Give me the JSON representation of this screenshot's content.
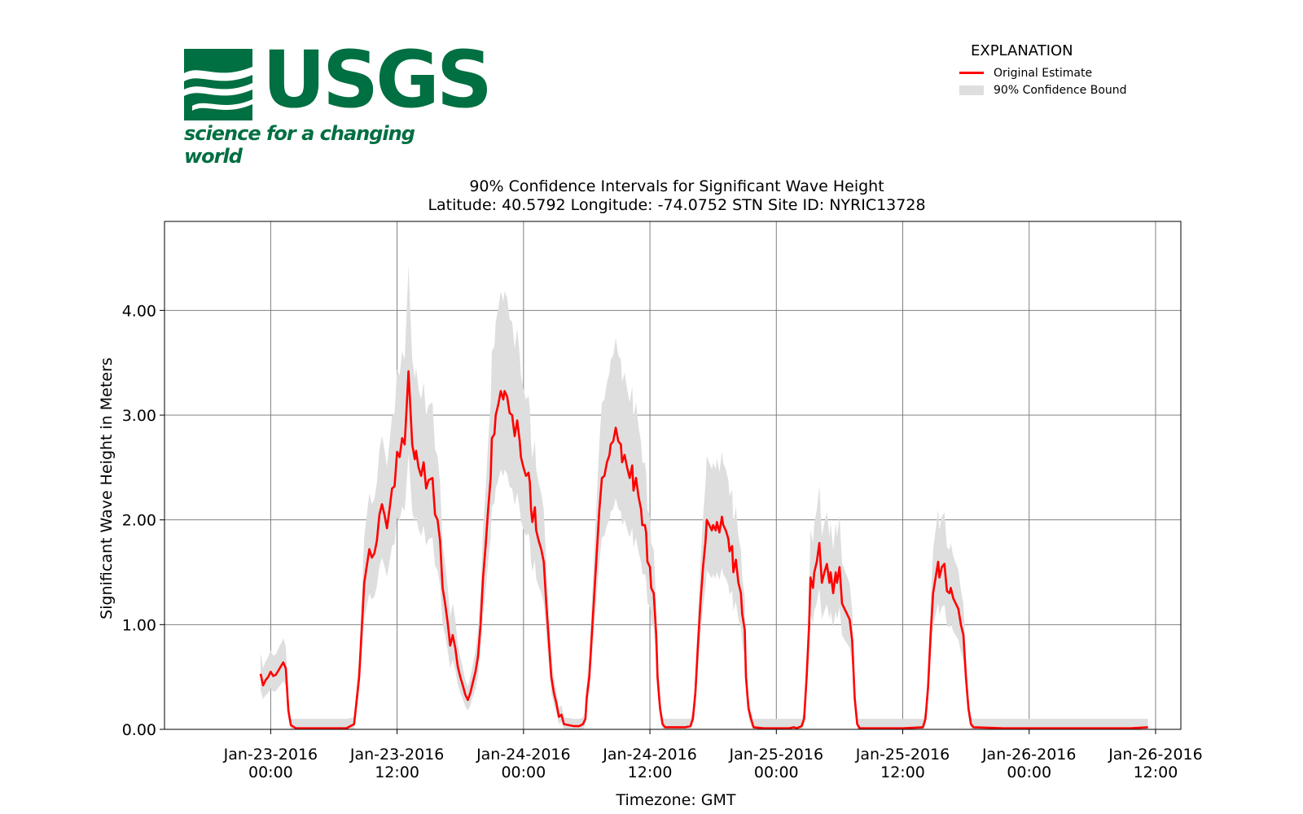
{
  "logo": {
    "wordmark": "USGS",
    "tagline": "science for a changing world"
  },
  "legend": {
    "title": "EXPLANATION",
    "items": [
      {
        "label": "Original Estimate",
        "kind": "line",
        "color": "#ff0000"
      },
      {
        "label": "90% Confidence Bound",
        "kind": "band",
        "color": "#dedede"
      }
    ]
  },
  "chart_data": {
    "type": "line",
    "title": "90% Confidence Intervals for Significant Wave Height",
    "subtitle": "Latitude: 40.5792 Longitude: -74.0752 STN Site ID: NYRIC13728",
    "xlabel": "Timezone: GMT",
    "ylabel": "Significant Wave Height in Meters",
    "xlim": [
      -0.42,
      3.6
    ],
    "ylim": [
      0,
      4.85
    ],
    "grid": true,
    "legend_position": "top-right",
    "x_ticks": [
      {
        "value": 0.0,
        "label_date": "Jan-23-2016",
        "label_time": "00:00"
      },
      {
        "value": 0.5,
        "label_date": "Jan-23-2016",
        "label_time": "12:00"
      },
      {
        "value": 1.0,
        "label_date": "Jan-24-2016",
        "label_time": "00:00"
      },
      {
        "value": 1.5,
        "label_date": "Jan-24-2016",
        "label_time": "12:00"
      },
      {
        "value": 2.0,
        "label_date": "Jan-25-2016",
        "label_time": "00:00"
      },
      {
        "value": 2.5,
        "label_date": "Jan-25-2016",
        "label_time": "12:00"
      },
      {
        "value": 3.0,
        "label_date": "Jan-26-2016",
        "label_time": "00:00"
      },
      {
        "value": 3.5,
        "label_date": "Jan-26-2016",
        "label_time": "12:00"
      }
    ],
    "y_ticks": [
      {
        "value": 0,
        "label": "0.00"
      },
      {
        "value": 1,
        "label": "1.00"
      },
      {
        "value": 2,
        "label": "2.00"
      },
      {
        "value": 3,
        "label": "3.00"
      },
      {
        "value": 4,
        "label": "4.00"
      }
    ],
    "x_unit_note": "x in days from Jan-23-2016 00:00 GMT",
    "series": [
      {
        "name": "Original Estimate",
        "color": "#ff0000",
        "points": [
          [
            -0.04,
            0.53
          ],
          [
            -0.03,
            0.42
          ],
          [
            -0.02,
            0.47
          ],
          [
            -0.01,
            0.5
          ],
          [
            0.0,
            0.55
          ],
          [
            0.01,
            0.51
          ],
          [
            0.02,
            0.52
          ],
          [
            0.03,
            0.56
          ],
          [
            0.04,
            0.6
          ],
          [
            0.05,
            0.64
          ],
          [
            0.06,
            0.58
          ],
          [
            0.07,
            0.18
          ],
          [
            0.08,
            0.04
          ],
          [
            0.1,
            0.01
          ],
          [
            0.3,
            0.01
          ],
          [
            0.33,
            0.05
          ],
          [
            0.35,
            0.5
          ],
          [
            0.37,
            1.4
          ],
          [
            0.39,
            1.72
          ],
          [
            0.4,
            1.64
          ],
          [
            0.41,
            1.68
          ],
          [
            0.42,
            1.8
          ],
          [
            0.43,
            2.05
          ],
          [
            0.44,
            2.15
          ],
          [
            0.45,
            2.05
          ],
          [
            0.46,
            1.92
          ],
          [
            0.47,
            2.1
          ],
          [
            0.48,
            2.3
          ],
          [
            0.49,
            2.32
          ],
          [
            0.5,
            2.65
          ],
          [
            0.51,
            2.6
          ],
          [
            0.52,
            2.78
          ],
          [
            0.53,
            2.72
          ],
          [
            0.535,
            2.95
          ],
          [
            0.545,
            3.42
          ],
          [
            0.555,
            2.95
          ],
          [
            0.56,
            2.72
          ],
          [
            0.57,
            2.58
          ],
          [
            0.575,
            2.66
          ],
          [
            0.585,
            2.5
          ],
          [
            0.595,
            2.42
          ],
          [
            0.605,
            2.55
          ],
          [
            0.615,
            2.3
          ],
          [
            0.625,
            2.38
          ],
          [
            0.64,
            2.4
          ],
          [
            0.65,
            2.05
          ],
          [
            0.66,
            2.0
          ],
          [
            0.67,
            1.8
          ],
          [
            0.68,
            1.35
          ],
          [
            0.69,
            1.2
          ],
          [
            0.7,
            1.02
          ],
          [
            0.71,
            0.8
          ],
          [
            0.72,
            0.9
          ],
          [
            0.73,
            0.78
          ],
          [
            0.74,
            0.6
          ],
          [
            0.75,
            0.5
          ],
          [
            0.76,
            0.42
          ],
          [
            0.77,
            0.33
          ],
          [
            0.78,
            0.28
          ],
          [
            0.79,
            0.35
          ],
          [
            0.8,
            0.45
          ],
          [
            0.81,
            0.55
          ],
          [
            0.82,
            0.7
          ],
          [
            0.83,
            1.0
          ],
          [
            0.84,
            1.45
          ],
          [
            0.85,
            1.75
          ],
          [
            0.86,
            2.1
          ],
          [
            0.87,
            2.4
          ],
          [
            0.875,
            2.78
          ],
          [
            0.885,
            2.82
          ],
          [
            0.89,
            3.0
          ],
          [
            0.9,
            3.1
          ],
          [
            0.91,
            3.23
          ],
          [
            0.92,
            3.15
          ],
          [
            0.925,
            3.23
          ],
          [
            0.935,
            3.18
          ],
          [
            0.945,
            3.02
          ],
          [
            0.955,
            3.0
          ],
          [
            0.96,
            2.9
          ],
          [
            0.965,
            2.8
          ],
          [
            0.975,
            2.95
          ],
          [
            0.985,
            2.75
          ],
          [
            0.99,
            2.6
          ],
          [
            1.0,
            2.5
          ],
          [
            1.01,
            2.42
          ],
          [
            1.02,
            2.45
          ],
          [
            1.025,
            2.36
          ],
          [
            1.03,
            2.1
          ],
          [
            1.035,
            1.98
          ],
          [
            1.045,
            2.12
          ],
          [
            1.05,
            1.9
          ],
          [
            1.06,
            1.8
          ],
          [
            1.07,
            1.72
          ],
          [
            1.08,
            1.6
          ],
          [
            1.09,
            1.2
          ],
          [
            1.1,
            0.85
          ],
          [
            1.11,
            0.5
          ],
          [
            1.12,
            0.35
          ],
          [
            1.13,
            0.25
          ],
          [
            1.14,
            0.12
          ],
          [
            1.15,
            0.14
          ],
          [
            1.16,
            0.05
          ],
          [
            1.2,
            0.03
          ],
          [
            1.22,
            0.03
          ],
          [
            1.235,
            0.05
          ],
          [
            1.245,
            0.1
          ],
          [
            1.25,
            0.3
          ],
          [
            1.26,
            0.5
          ],
          [
            1.27,
            0.9
          ],
          [
            1.28,
            1.3
          ],
          [
            1.29,
            1.7
          ],
          [
            1.3,
            2.1
          ],
          [
            1.31,
            2.4
          ],
          [
            1.32,
            2.42
          ],
          [
            1.33,
            2.55
          ],
          [
            1.34,
            2.62
          ],
          [
            1.345,
            2.72
          ],
          [
            1.355,
            2.75
          ],
          [
            1.365,
            2.88
          ],
          [
            1.375,
            2.75
          ],
          [
            1.385,
            2.72
          ],
          [
            1.39,
            2.55
          ],
          [
            1.4,
            2.62
          ],
          [
            1.41,
            2.5
          ],
          [
            1.42,
            2.4
          ],
          [
            1.43,
            2.52
          ],
          [
            1.435,
            2.28
          ],
          [
            1.445,
            2.4
          ],
          [
            1.455,
            2.22
          ],
          [
            1.465,
            2.1
          ],
          [
            1.47,
            1.95
          ],
          [
            1.48,
            1.95
          ],
          [
            1.485,
            1.88
          ],
          [
            1.49,
            1.6
          ],
          [
            1.5,
            1.55
          ],
          [
            1.505,
            1.35
          ],
          [
            1.515,
            1.3
          ],
          [
            1.525,
            0.9
          ],
          [
            1.53,
            0.5
          ],
          [
            1.54,
            0.2
          ],
          [
            1.55,
            0.05
          ],
          [
            1.56,
            0.02
          ],
          [
            1.6,
            0.02
          ],
          [
            1.64,
            0.02
          ],
          [
            1.66,
            0.03
          ],
          [
            1.67,
            0.1
          ],
          [
            1.68,
            0.35
          ],
          [
            1.69,
            0.8
          ],
          [
            1.7,
            1.2
          ],
          [
            1.71,
            1.55
          ],
          [
            1.72,
            1.8
          ],
          [
            1.725,
            2.0
          ],
          [
            1.735,
            1.95
          ],
          [
            1.745,
            1.9
          ],
          [
            1.75,
            1.95
          ],
          [
            1.76,
            1.9
          ],
          [
            1.765,
            1.98
          ],
          [
            1.775,
            1.88
          ],
          [
            1.785,
            2.03
          ],
          [
            1.79,
            1.95
          ],
          [
            1.8,
            1.9
          ],
          [
            1.81,
            1.82
          ],
          [
            1.815,
            1.7
          ],
          [
            1.825,
            1.75
          ],
          [
            1.83,
            1.5
          ],
          [
            1.84,
            1.62
          ],
          [
            1.85,
            1.4
          ],
          [
            1.86,
            1.3
          ],
          [
            1.865,
            1.1
          ],
          [
            1.875,
            0.95
          ],
          [
            1.88,
            0.5
          ],
          [
            1.89,
            0.2
          ],
          [
            1.9,
            0.1
          ],
          [
            1.91,
            0.02
          ],
          [
            1.95,
            0.01
          ],
          [
            2.0,
            0.01
          ],
          [
            2.05,
            0.01
          ],
          [
            2.07,
            0.02
          ],
          [
            2.08,
            0.01
          ],
          [
            2.1,
            0.03
          ],
          [
            2.11,
            0.1
          ],
          [
            2.12,
            0.5
          ],
          [
            2.13,
            1.0
          ],
          [
            2.135,
            1.45
          ],
          [
            2.145,
            1.35
          ],
          [
            2.15,
            1.5
          ],
          [
            2.16,
            1.6
          ],
          [
            2.17,
            1.78
          ],
          [
            2.18,
            1.4
          ],
          [
            2.19,
            1.5
          ],
          [
            2.2,
            1.58
          ],
          [
            2.21,
            1.4
          ],
          [
            2.215,
            1.5
          ],
          [
            2.225,
            1.3
          ],
          [
            2.235,
            1.5
          ],
          [
            2.24,
            1.4
          ],
          [
            2.25,
            1.55
          ],
          [
            2.26,
            1.2
          ],
          [
            2.27,
            1.15
          ],
          [
            2.28,
            1.1
          ],
          [
            2.29,
            1.05
          ],
          [
            2.3,
            0.85
          ],
          [
            2.31,
            0.3
          ],
          [
            2.32,
            0.05
          ],
          [
            2.33,
            0.01
          ],
          [
            2.4,
            0.01
          ],
          [
            2.5,
            0.01
          ],
          [
            2.58,
            0.02
          ],
          [
            2.59,
            0.1
          ],
          [
            2.6,
            0.4
          ],
          [
            2.61,
            0.9
          ],
          [
            2.62,
            1.3
          ],
          [
            2.63,
            1.45
          ],
          [
            2.64,
            1.6
          ],
          [
            2.645,
            1.45
          ],
          [
            2.655,
            1.55
          ],
          [
            2.665,
            1.58
          ],
          [
            2.675,
            1.32
          ],
          [
            2.685,
            1.3
          ],
          [
            2.69,
            1.35
          ],
          [
            2.7,
            1.25
          ],
          [
            2.71,
            1.2
          ],
          [
            2.72,
            1.15
          ],
          [
            2.73,
            1.0
          ],
          [
            2.74,
            0.9
          ],
          [
            2.75,
            0.5
          ],
          [
            2.76,
            0.2
          ],
          [
            2.77,
            0.05
          ],
          [
            2.78,
            0.02
          ],
          [
            2.9,
            0.01
          ],
          [
            3.0,
            0.01
          ],
          [
            3.1,
            0.01
          ],
          [
            3.2,
            0.01
          ],
          [
            3.3,
            0.01
          ],
          [
            3.4,
            0.01
          ],
          [
            3.47,
            0.02
          ]
        ]
      },
      {
        "name": "90% Confidence Bound",
        "color": "#dedede",
        "points": []
      }
    ]
  }
}
